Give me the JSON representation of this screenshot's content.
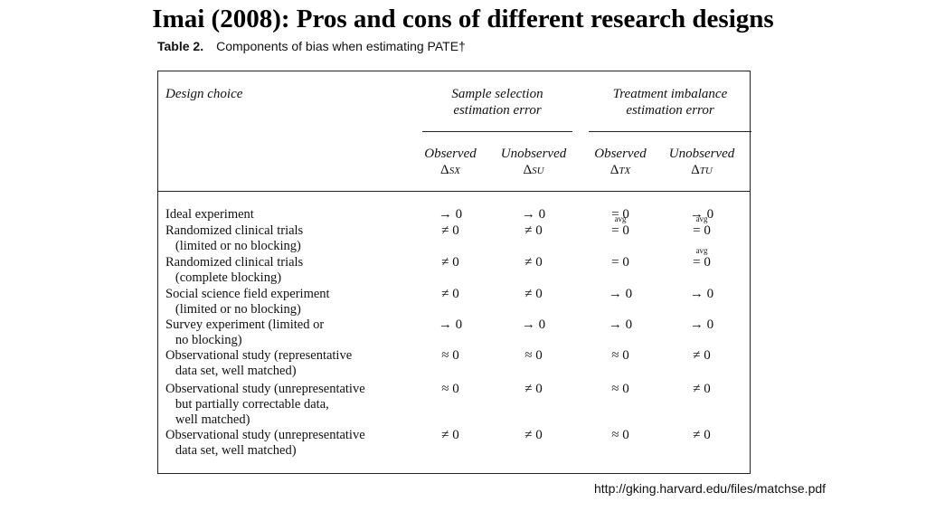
{
  "slide": {
    "title": "Imai (2008): Pros and cons of different research designs",
    "source_url": "http://gking.harvard.edu/files/matchse.pdf"
  },
  "table": {
    "caption_label": "Table 2.",
    "caption_text": "Components of bias when estimating PATE†",
    "header": {
      "design_choice": "Design choice",
      "group_sample": "Sample selection\nestimation error",
      "group_treatment": "Treatment imbalance\nestimation error",
      "sub_observed": "Observed",
      "sub_unobserved": "Unobserved",
      "delta_sx": "Δ",
      "delta_sx_sub": "SX",
      "delta_su": "Δ",
      "delta_su_sub": "SU",
      "delta_tx": "Δ",
      "delta_tx_sub": "TX",
      "delta_tu": "Δ",
      "delta_tu_sub": "TU",
      "avg_label": "avg"
    },
    "rows": [
      {
        "label": "Ideal experiment",
        "sx": "→ 0",
        "su": "→ 0",
        "tx": "= 0",
        "tu": "→ 0"
      },
      {
        "label": "Randomized clinical trials\n   (limited or no blocking)",
        "sx": "≠ 0",
        "su": "≠ 0",
        "tx": "= 0",
        "tu": "= 0"
      },
      {
        "label": "Randomized clinical trials\n   (complete blocking)",
        "sx": "≠ 0",
        "su": "≠ 0",
        "tx": "= 0",
        "tu": "= 0"
      },
      {
        "label": "Social science field experiment\n   (limited or no blocking)",
        "sx": "≠ 0",
        "su": "≠ 0",
        "tx": "→ 0",
        "tu": "→ 0"
      },
      {
        "label": "Survey experiment (limited or\n   no blocking)",
        "sx": "→ 0",
        "su": "→ 0",
        "tx": "→ 0",
        "tu": "→ 0"
      },
      {
        "label": "Observational study (representative\n   data set, well matched)",
        "sx": "≈ 0",
        "su": "≈ 0",
        "tx": "≈ 0",
        "tu": "≠ 0"
      },
      {
        "label": "Observational study (unrepresentative\n   but partially correctable data,\n   well matched)",
        "sx": "≈ 0",
        "su": "≠ 0",
        "tx": "≈ 0",
        "tu": "≠ 0"
      },
      {
        "label": "Observational study (unrepresentative\n   data set, well matched)",
        "sx": "≠ 0",
        "su": "≠ 0",
        "tx": "≈ 0",
        "tu": "≠ 0"
      }
    ]
  }
}
